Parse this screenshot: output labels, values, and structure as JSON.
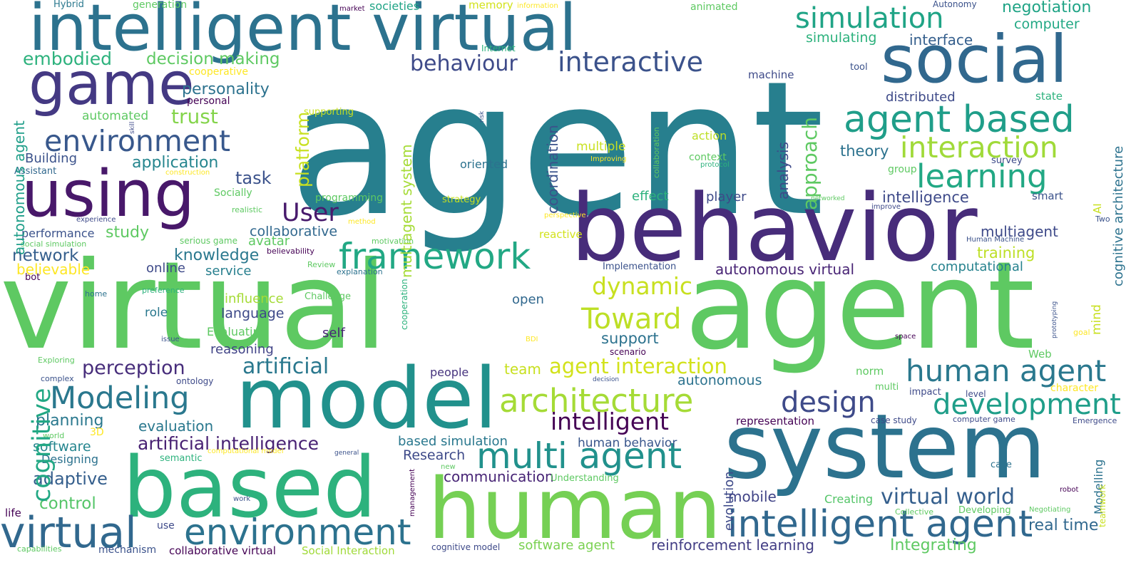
{
  "words": [
    {
      "text": "agent",
      "color": "#277f8e"
    },
    {
      "text": "virtual",
      "color": "#5ec962"
    },
    {
      "text": "agent",
      "color": "#5ec962"
    },
    {
      "text": "intelligent virtual",
      "color": "#2c728e"
    },
    {
      "text": "behavior",
      "color": "#472c7a"
    },
    {
      "text": "system",
      "color": "#2c728e"
    },
    {
      "text": "model",
      "color": "#21918c"
    },
    {
      "text": "based",
      "color": "#2db27d"
    },
    {
      "text": "human",
      "color": "#75d054"
    },
    {
      "text": "social",
      "color": "#31688e"
    },
    {
      "text": "using",
      "color": "#48186a"
    },
    {
      "text": "game",
      "color": "#443983"
    },
    {
      "text": "virtual",
      "color": "#31688e"
    },
    {
      "text": "environment",
      "color": "#2c728e"
    },
    {
      "text": "intelligent agent",
      "color": "#31688e"
    },
    {
      "text": "multi agent",
      "color": "#21918c"
    },
    {
      "text": "agent based",
      "color": "#1f9e89"
    },
    {
      "text": "framework",
      "color": "#22a884"
    },
    {
      "text": "architecture",
      "color": "#a5db36"
    },
    {
      "text": "environment",
      "color": "#38588c"
    },
    {
      "text": "Modeling",
      "color": "#2a788e"
    },
    {
      "text": "simulation",
      "color": "#20a486"
    },
    {
      "text": "interactive",
      "color": "#3b528b"
    },
    {
      "text": "interaction",
      "color": "#a0da39"
    },
    {
      "text": "learning",
      "color": "#22a884"
    },
    {
      "text": "human agent",
      "color": "#2a788e"
    },
    {
      "text": "development",
      "color": "#1f9e89"
    },
    {
      "text": "design",
      "color": "#3e4a89"
    },
    {
      "text": "Toward",
      "color": "#bddf26"
    },
    {
      "text": "intelligent",
      "color": "#440154"
    },
    {
      "text": "agent interaction",
      "color": "#d2e21b"
    },
    {
      "text": "artificial intelligence",
      "color": "#482173"
    },
    {
      "text": "virtual world",
      "color": "#355f8d"
    },
    {
      "text": "artificial",
      "color": "#2a788e"
    },
    {
      "text": "dynamic",
      "color": "#c8e020"
    },
    {
      "text": "behaviour",
      "color": "#3e4a89"
    },
    {
      "text": "embodied",
      "color": "#2db27d"
    },
    {
      "text": "decision making",
      "color": "#5ec962"
    },
    {
      "text": "personality",
      "color": "#2c728e"
    },
    {
      "text": "trust",
      "color": "#84d44b"
    },
    {
      "text": "application",
      "color": "#25858e"
    },
    {
      "text": "User",
      "color": "#481a6c"
    },
    {
      "text": "task",
      "color": "#3b528b"
    },
    {
      "text": "planning",
      "color": "#2a788e"
    },
    {
      "text": "perception",
      "color": "#472d7b"
    },
    {
      "text": "adaptive",
      "color": "#355f8d"
    },
    {
      "text": "control",
      "color": "#54c568"
    },
    {
      "text": "evaluation",
      "color": "#2a788e"
    },
    {
      "text": "software",
      "color": "#25858e"
    },
    {
      "text": "Designing",
      "color": "#2c728e"
    },
    {
      "text": "study",
      "color": "#5ec962"
    },
    {
      "text": "performance",
      "color": "#3b528b"
    },
    {
      "text": "network",
      "color": "#355f8d"
    },
    {
      "text": "believable",
      "color": "#fde725"
    },
    {
      "text": "knowledge",
      "color": "#2a788e"
    },
    {
      "text": "collaborative",
      "color": "#31688e"
    },
    {
      "text": "online",
      "color": "#3e4a89"
    },
    {
      "text": "service",
      "color": "#277f8e"
    },
    {
      "text": "avatar",
      "color": "#5ec962"
    },
    {
      "text": "autonomous virtual",
      "color": "#482475"
    },
    {
      "text": "autonomous",
      "color": "#2c728e"
    },
    {
      "text": "multiagent",
      "color": "#3e4a89"
    },
    {
      "text": "training",
      "color": "#bddf26"
    },
    {
      "text": "computational",
      "color": "#26828e"
    },
    {
      "text": "negotiation",
      "color": "#20a486"
    },
    {
      "text": "computer",
      "color": "#22a884"
    },
    {
      "text": "interface",
      "color": "#355f8d"
    },
    {
      "text": "simulating",
      "color": "#2db27d"
    },
    {
      "text": "distributed",
      "color": "#3e4a89"
    },
    {
      "text": "theory",
      "color": "#2c728e"
    },
    {
      "text": "intelligence",
      "color": "#3e4a89"
    },
    {
      "text": "team",
      "color": "#c8e020"
    },
    {
      "text": "support",
      "color": "#2c728e"
    },
    {
      "text": "language",
      "color": "#3e4a89"
    },
    {
      "text": "reasoning",
      "color": "#414487"
    },
    {
      "text": "self",
      "color": "#482475"
    },
    {
      "text": "role",
      "color": "#2a788e"
    },
    {
      "text": "influence",
      "color": "#a5db36"
    },
    {
      "text": "Evaluating",
      "color": "#5ec962"
    },
    {
      "text": "people",
      "color": "#46337e"
    },
    {
      "text": "Research",
      "color": "#3e4a89"
    },
    {
      "text": "based simulation",
      "color": "#2a788e"
    },
    {
      "text": "human behavior",
      "color": "#39568c"
    },
    {
      "text": "communication",
      "color": "#482576"
    },
    {
      "text": "mobile",
      "color": "#414487"
    },
    {
      "text": "reinforcement learning",
      "color": "#433e85"
    },
    {
      "text": "software agent",
      "color": "#7ad151"
    },
    {
      "text": "Integrating",
      "color": "#5ec962"
    },
    {
      "text": "real time",
      "color": "#31688e"
    },
    {
      "text": "Creating",
      "color": "#54c568"
    },
    {
      "text": "representation",
      "color": "#440154"
    },
    {
      "text": "Building",
      "color": "#3b528b"
    },
    {
      "text": "automated",
      "color": "#5ec962"
    },
    {
      "text": "effect",
      "color": "#2db27d"
    },
    {
      "text": "player",
      "color": "#3e4a89"
    },
    {
      "text": "open",
      "color": "#31688e"
    },
    {
      "text": "oriented",
      "color": "#2c728e"
    },
    {
      "text": "multiple",
      "color": "#c8e020"
    },
    {
      "text": "action",
      "color": "#bddf26"
    },
    {
      "text": "context",
      "color": "#5ec962"
    },
    {
      "text": "mechanism",
      "color": "#3b528b"
    },
    {
      "text": "collaborative virtual",
      "color": "#440154"
    },
    {
      "text": "Social Interaction",
      "color": "#a0da39"
    },
    {
      "text": "cognitive model",
      "color": "#3e4a89"
    },
    {
      "text": "Hybrid",
      "color": "#2a788e"
    },
    {
      "text": "generation",
      "color": "#5ec962"
    },
    {
      "text": "societies",
      "color": "#20a486"
    },
    {
      "text": "memory",
      "color": "#d2e21b"
    },
    {
      "text": "animated",
      "color": "#5ec962"
    },
    {
      "text": "Autonomy",
      "color": "#3b528b"
    },
    {
      "text": "information",
      "color": "#fde725"
    },
    {
      "text": "market",
      "color": "#440154"
    },
    {
      "text": "Internet",
      "color": "#2db27d"
    },
    {
      "text": "machine",
      "color": "#3e4a89"
    },
    {
      "text": "tool",
      "color": "#3b528b"
    },
    {
      "text": "state",
      "color": "#2db27d"
    },
    {
      "text": "survey",
      "color": "#3e4a89"
    },
    {
      "text": "group",
      "color": "#5ec962"
    },
    {
      "text": "smart",
      "color": "#3b528b"
    },
    {
      "text": "Two",
      "color": "#3b528b"
    },
    {
      "text": "Human Machine",
      "color": "#3b528b"
    },
    {
      "text": "cooperative",
      "color": "#fde725"
    },
    {
      "text": "personal",
      "color": "#440154"
    },
    {
      "text": "supporting",
      "color": "#c8e020"
    },
    {
      "text": "strategy",
      "color": "#c8e020"
    },
    {
      "text": "programming",
      "color": "#5ec962"
    },
    {
      "text": "realistic",
      "color": "#5ec962"
    },
    {
      "text": "Socially",
      "color": "#5ec962"
    },
    {
      "text": "experience",
      "color": "#3e4a89"
    },
    {
      "text": "construction",
      "color": "#fde725"
    },
    {
      "text": "Assistant",
      "color": "#31688e"
    },
    {
      "text": "social simulation",
      "color": "#5ec962"
    },
    {
      "text": "serious game",
      "color": "#5ec962"
    },
    {
      "text": "method",
      "color": "#fde725"
    },
    {
      "text": "motivation",
      "color": "#5ec962"
    },
    {
      "text": "believability",
      "color": "#440154"
    },
    {
      "text": "Review",
      "color": "#5ec962"
    },
    {
      "text": "explanation",
      "color": "#2c728e"
    },
    {
      "text": "bot",
      "color": "#440154"
    },
    {
      "text": "preference",
      "color": "#2db27d"
    },
    {
      "text": "home",
      "color": "#2c728e"
    },
    {
      "text": "Challenge",
      "color": "#5ec962"
    },
    {
      "text": "issue",
      "color": "#3b528b"
    },
    {
      "text": "BDI",
      "color": "#fde725"
    },
    {
      "text": "Exploring",
      "color": "#5ec962"
    },
    {
      "text": "complex",
      "color": "#3b528b"
    },
    {
      "text": "ontology",
      "color": "#3e4a89"
    },
    {
      "text": "world",
      "color": "#5ec962"
    },
    {
      "text": "3D",
      "color": "#fde725"
    },
    {
      "text": "semantic",
      "color": "#2db27d"
    },
    {
      "text": "computational model",
      "color": "#fde725"
    },
    {
      "text": "general",
      "color": "#3b528b"
    },
    {
      "text": "new",
      "color": "#5ec962"
    },
    {
      "text": "Understanding",
      "color": "#5ec962"
    },
    {
      "text": "reactive",
      "color": "#d2e21b"
    },
    {
      "text": "perspective",
      "color": "#fde725"
    },
    {
      "text": "Implementation",
      "color": "#3b528b"
    },
    {
      "text": "Improving",
      "color": "#fde725"
    },
    {
      "text": "protocol",
      "color": "#2db27d"
    },
    {
      "text": "networked",
      "color": "#5ec962"
    },
    {
      "text": "improve",
      "color": "#3e4a89"
    },
    {
      "text": "scenario",
      "color": "#440154"
    },
    {
      "text": "decision",
      "color": "#3b528b"
    },
    {
      "text": "space",
      "color": "#440154"
    },
    {
      "text": "goal",
      "color": "#fde725"
    },
    {
      "text": "Web",
      "color": "#5ec962"
    },
    {
      "text": "norm",
      "color": "#5ec962"
    },
    {
      "text": "multi",
      "color": "#5ec962"
    },
    {
      "text": "impact",
      "color": "#3e4a89"
    },
    {
      "text": "level",
      "color": "#3e4a89"
    },
    {
      "text": "character",
      "color": "#fde725"
    },
    {
      "text": "case study",
      "color": "#3e4a89"
    },
    {
      "text": "computer game",
      "color": "#3e4a89"
    },
    {
      "text": "Emergence",
      "color": "#3e4a89"
    },
    {
      "text": "case",
      "color": "#2c728e"
    },
    {
      "text": "robot",
      "color": "#440154"
    },
    {
      "text": "Collective",
      "color": "#5ec962"
    },
    {
      "text": "Developing",
      "color": "#5ec962"
    },
    {
      "text": "Negotiating",
      "color": "#5ec962"
    },
    {
      "text": "life",
      "color": "#440154"
    },
    {
      "text": "use",
      "color": "#3e4a89"
    },
    {
      "text": "work",
      "color": "#3b528b"
    },
    {
      "text": "capabilities",
      "color": "#5ec962"
    },
    {
      "text": "autonomous agent",
      "color": "#1f9e89"
    },
    {
      "text": "cognitive",
      "color": "#22a884"
    },
    {
      "text": "platform",
      "color": "#c8e020"
    },
    {
      "text": "multiagent system",
      "color": "#a5db36"
    },
    {
      "text": "coordination",
      "color": "#3b528b"
    },
    {
      "text": "approach",
      "color": "#5ec962"
    },
    {
      "text": "analysis",
      "color": "#3e4a89"
    },
    {
      "text": "cognitive architecture",
      "color": "#2c728e"
    },
    {
      "text": "AI",
      "color": "#c8e020"
    },
    {
      "text": "mind",
      "color": "#c8e020"
    },
    {
      "text": "Modelling",
      "color": "#2c728e"
    },
    {
      "text": "teamwork",
      "color": "#c8e020"
    },
    {
      "text": "evolution",
      "color": "#3e4a89"
    },
    {
      "text": "management",
      "color": "#440154"
    },
    {
      "text": "cooperation",
      "color": "#2db27d"
    },
    {
      "text": "collaboration",
      "color": "#5ec962"
    },
    {
      "text": "risk",
      "color": "#3b528b"
    },
    {
      "text": "skill",
      "color": "#3e4a89"
    },
    {
      "text": "prototyping",
      "color": "#3b528b"
    }
  ]
}
